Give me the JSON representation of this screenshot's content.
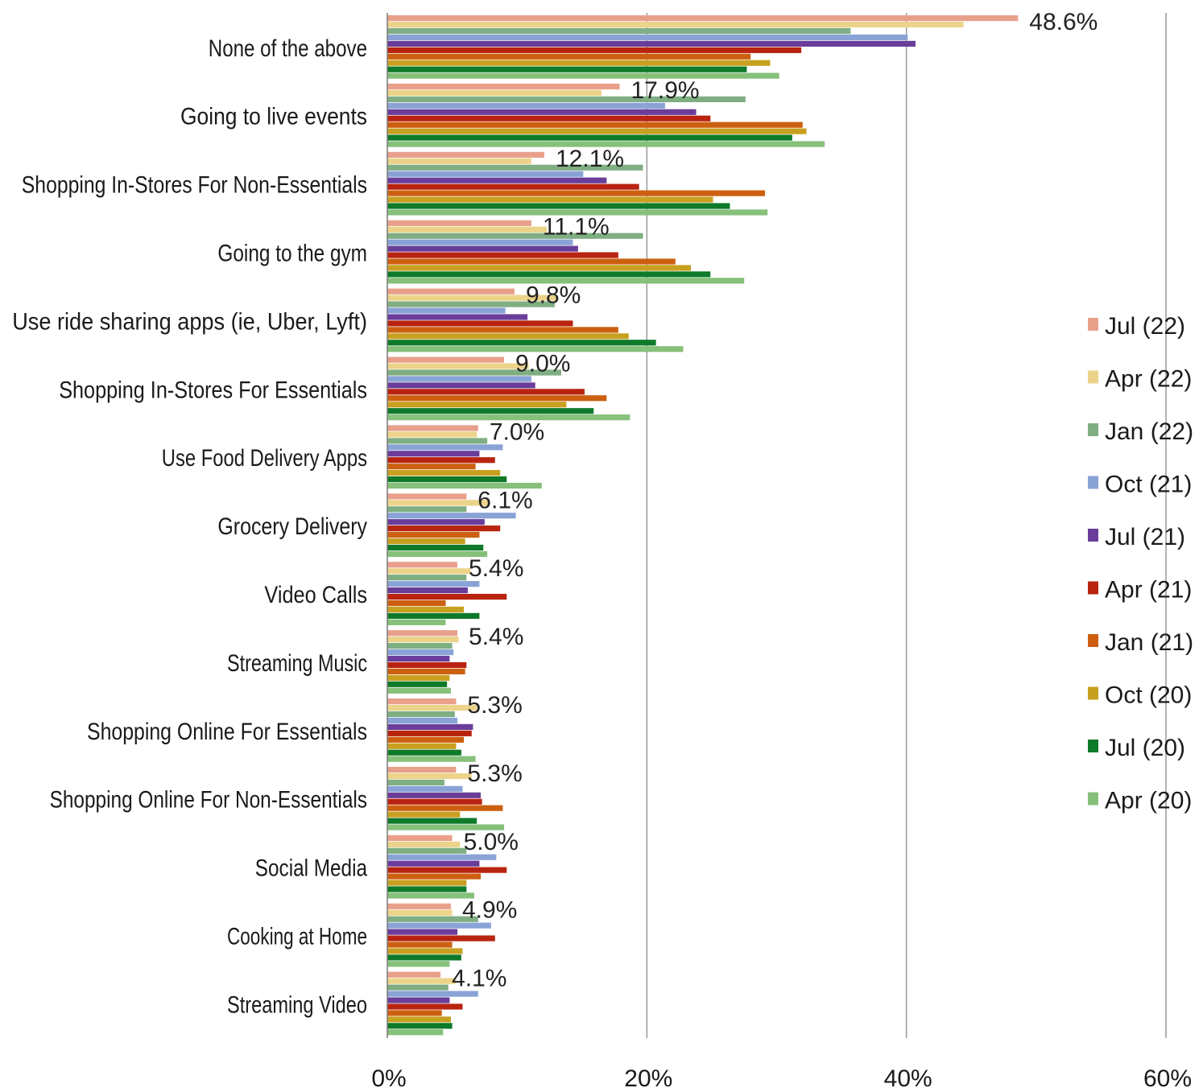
{
  "chart_data": {
    "type": "bar",
    "orientation": "horizontal",
    "title": "",
    "xlabel": "",
    "ylabel": "",
    "xlim": [
      0,
      60
    ],
    "x_ticks": [
      0,
      20,
      40,
      60
    ],
    "x_tick_labels": [
      "0%",
      "20%",
      "40%",
      "60%"
    ],
    "grid": "vertical gridlines",
    "legend_position": "right",
    "categories": [
      "None of the above",
      "Going to live events",
      "Shopping In-Stores For Non-Essentials",
      "Going to the gym",
      "Use ride sharing apps (ie, Uber, Lyft)",
      "Shopping In-Stores For Essentials",
      "Use Food Delivery Apps",
      "Grocery Delivery",
      "Video Calls",
      "Streaming Music",
      "Shopping Online For Essentials",
      "Shopping Online For Non-Essentials",
      "Social Media",
      "Cooking at Home",
      "Streaming Video"
    ],
    "data_labels": [
      "48.6%",
      "17.9%",
      "12.1%",
      "11.1%",
      "9.8%",
      "9.0%",
      "7.0%",
      "6.1%",
      "5.4%",
      "5.4%",
      "5.3%",
      "5.3%",
      "5.0%",
      "4.9%",
      "4.1%"
    ],
    "series": [
      {
        "name": "Jul (22)",
        "color": "#e8a08a",
        "values": [
          48.6,
          17.9,
          12.1,
          11.1,
          9.8,
          9.0,
          7.0,
          6.1,
          5.4,
          5.4,
          5.3,
          5.3,
          5.0,
          4.9,
          4.1
        ]
      },
      {
        "name": "Apr (22)",
        "color": "#ecd38a",
        "values": [
          44.4,
          16.5,
          11.1,
          12.3,
          13.0,
          10.9,
          6.9,
          7.8,
          6.4,
          5.5,
          6.9,
          6.5,
          5.6,
          5.0,
          5.3
        ]
      },
      {
        "name": "Jan (22)",
        "color": "#7fae82",
        "values": [
          35.7,
          27.6,
          19.7,
          19.7,
          12.9,
          13.4,
          7.7,
          6.1,
          6.1,
          5.0,
          5.2,
          4.4,
          6.1,
          7.0,
          4.7
        ]
      },
      {
        "name": "Oct (21)",
        "color": "#8aa3d6",
        "values": [
          40.1,
          21.4,
          15.1,
          14.3,
          9.1,
          11.1,
          8.9,
          9.9,
          7.1,
          5.1,
          5.4,
          5.8,
          8.4,
          8.0,
          7.0
        ]
      },
      {
        "name": "Jul (21)",
        "color": "#6a3d9a",
        "values": [
          40.7,
          23.8,
          16.9,
          14.7,
          10.8,
          11.4,
          7.1,
          7.5,
          6.2,
          4.8,
          6.6,
          7.2,
          7.1,
          5.4,
          4.8
        ]
      },
      {
        "name": "Apr (21)",
        "color": "#b82410",
        "values": [
          31.9,
          24.9,
          19.4,
          17.8,
          14.3,
          15.2,
          8.3,
          8.7,
          9.2,
          6.1,
          6.5,
          7.3,
          9.2,
          8.3,
          5.8
        ]
      },
      {
        "name": "Jan (21)",
        "color": "#cc6010",
        "values": [
          28.0,
          32.0,
          29.1,
          22.2,
          17.8,
          16.9,
          6.8,
          7.1,
          4.5,
          6.0,
          5.9,
          8.9,
          7.2,
          5.0,
          4.2
        ]
      },
      {
        "name": "Oct (20)",
        "color": "#c8a020",
        "values": [
          29.5,
          32.3,
          25.1,
          23.4,
          18.6,
          13.8,
          8.7,
          6.0,
          5.9,
          4.8,
          5.3,
          5.6,
          6.1,
          5.8,
          4.9
        ]
      },
      {
        "name": "Jul (20)",
        "color": "#0e7a2a",
        "values": [
          27.7,
          31.2,
          26.4,
          24.9,
          20.7,
          15.9,
          9.2,
          7.4,
          7.1,
          4.6,
          5.7,
          6.9,
          6.1,
          5.7,
          5.0
        ]
      },
      {
        "name": "Apr (20)",
        "color": "#86c07a",
        "values": [
          30.2,
          33.7,
          29.3,
          27.5,
          22.8,
          18.7,
          11.9,
          7.7,
          4.5,
          4.9,
          6.8,
          9.0,
          6.7,
          4.8,
          4.3
        ]
      }
    ]
  }
}
